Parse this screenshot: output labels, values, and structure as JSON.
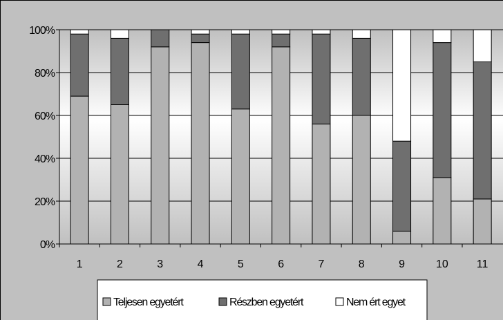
{
  "chart_data": {
    "type": "bar",
    "stacked": true,
    "percent_stacked": true,
    "categories": [
      "1",
      "2",
      "3",
      "4",
      "5",
      "6",
      "7",
      "8",
      "9",
      "10",
      "11"
    ],
    "series": [
      {
        "name": "Teljesen egyetért",
        "color": "#b2b2b2",
        "values": [
          69,
          65,
          92,
          94,
          63,
          92,
          56,
          60,
          6,
          31,
          21
        ]
      },
      {
        "name": "Részben egyetért",
        "color": "#6f6f6f",
        "values": [
          29,
          31,
          8,
          4,
          35,
          6,
          42,
          36,
          42,
          63,
          64
        ]
      },
      {
        "name": "Nem ért egyet",
        "color": "#ffffff",
        "values": [
          2,
          4,
          0,
          2,
          2,
          2,
          2,
          4,
          52,
          6,
          15
        ]
      }
    ],
    "y_ticks": [
      "0%",
      "20%",
      "40%",
      "60%",
      "80%",
      "100%"
    ],
    "ylim": [
      0,
      100
    ],
    "grid": true,
    "legend_position": "bottom"
  }
}
